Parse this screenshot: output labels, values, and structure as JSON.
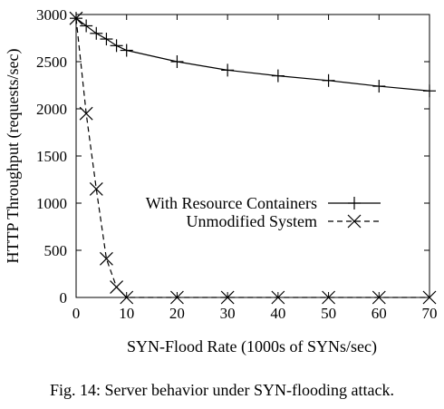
{
  "caption": "Fig. 14: Server behavior under SYN-flooding attack.",
  "chart_data": {
    "type": "line",
    "xlabel": "SYN-Flood Rate (1000s of SYNs/sec)",
    "ylabel": "HTTP Throughput (requests/sec)",
    "xlim": [
      0,
      70
    ],
    "ylim": [
      0,
      3000
    ],
    "xticks": [
      0,
      10,
      20,
      30,
      40,
      50,
      60,
      70
    ],
    "yticks": [
      0,
      500,
      1000,
      1500,
      2000,
      2500,
      3000
    ],
    "grid": false,
    "legend_position": "center-right",
    "series": [
      {
        "name": "With Resource Containers",
        "line_style": "solid",
        "marker": "plus",
        "x": [
          0,
          2,
          4,
          6,
          8,
          10,
          20,
          30,
          40,
          50,
          60,
          70
        ],
        "y": [
          2960,
          2880,
          2800,
          2740,
          2670,
          2620,
          2500,
          2410,
          2350,
          2300,
          2240,
          2190
        ]
      },
      {
        "name": "Unmodified System",
        "line_style": "dashed",
        "marker": "cross",
        "x": [
          0,
          2,
          4,
          6,
          8,
          10,
          20,
          30,
          40,
          50,
          60,
          70
        ],
        "y": [
          2960,
          1950,
          1150,
          410,
          110,
          0,
          0,
          0,
          0,
          0,
          0,
          0
        ]
      }
    ]
  }
}
